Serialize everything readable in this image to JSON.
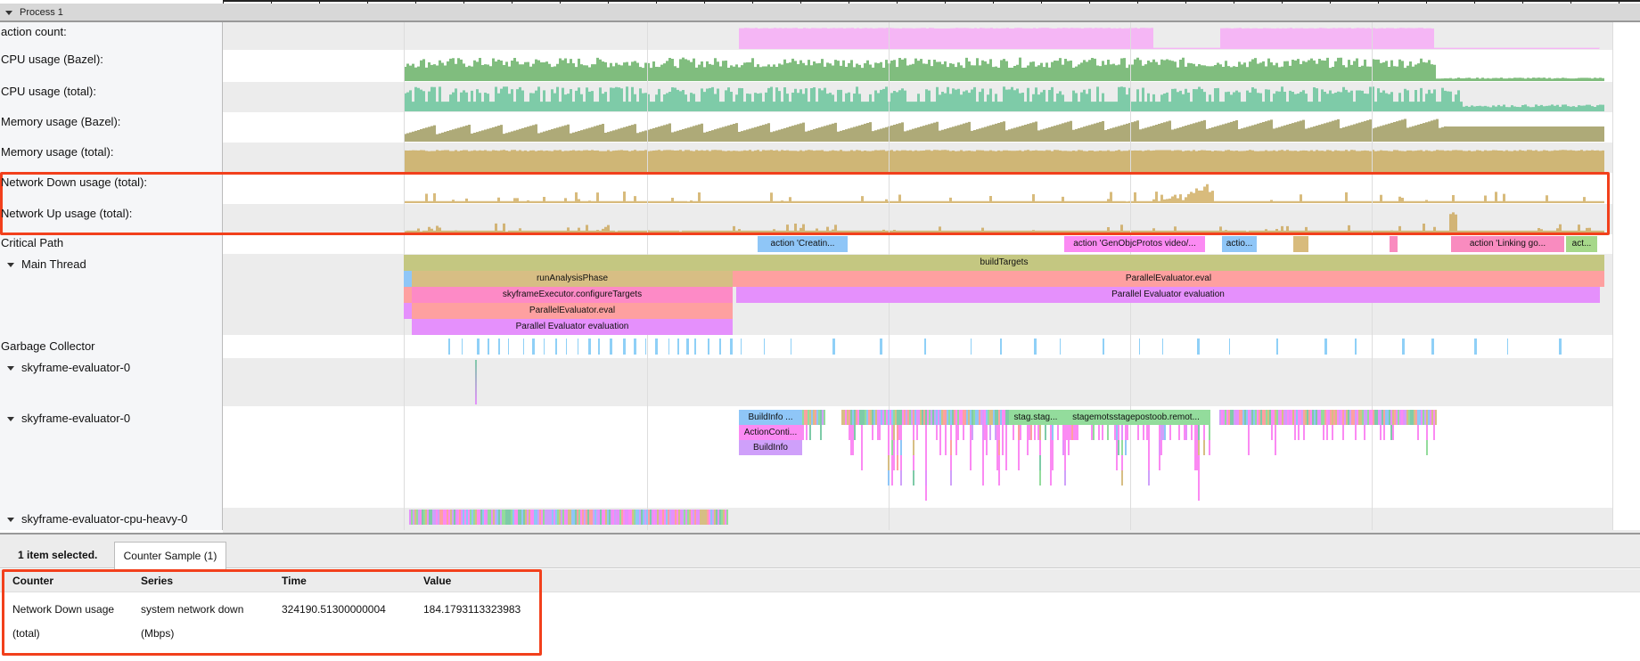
{
  "process": {
    "title": "Process 1"
  },
  "tracks": [
    {
      "label": "action count:",
      "color": "#f5b6f5"
    },
    {
      "label": "CPU usage (Bazel):",
      "color": "#80bd7e"
    },
    {
      "label": "CPU usage (total):",
      "color": "#7ecba8"
    },
    {
      "label": "Memory usage (Bazel):",
      "color": "#aeaa78"
    },
    {
      "label": "Memory usage (total):",
      "color": "#cfb676"
    },
    {
      "label": "Network Down usage (total):",
      "color": "#d8bb7c"
    },
    {
      "label": "Network Up usage (total):",
      "color": "#d2b476"
    }
  ],
  "threads": {
    "critical_path": "Critical Path",
    "main_thread": "Main Thread",
    "garbage_collector": "Garbage Collector",
    "sky0a": "skyframe-evaluator-0",
    "sky0b": "skyframe-evaluator-0",
    "cpu_heavy": "skyframe-evaluator-cpu-heavy-0"
  },
  "critical_path": [
    "action 'Creatin...",
    "action 'GenObjcProtos video/...",
    "actio...",
    "action 'Linking go...",
    "act..."
  ],
  "main_thread": {
    "build_targets": "buildTargets",
    "run_analysis": "runAnalysisPhase",
    "configure_targets": "skyframeExecutor.configureTargets",
    "pe_eval_a": "ParallelEvaluator.eval",
    "pe_evaluation_a": "Parallel Evaluator evaluation",
    "pe_eval_b": "ParallelEvaluator.eval",
    "pe_evaluation_b": "Parallel Evaluator evaluation"
  },
  "skyframe": {
    "buildinfo1": "BuildInfo ...",
    "actioncontext": "ActionConti...",
    "buildinfo2": "BuildInfo",
    "stag1": "stag.stag...",
    "stag2": "stagemotsstagepostoob.remot..."
  },
  "details": {
    "selection": "1 item selected.",
    "tab": "Counter Sample (1)",
    "columns": [
      "Counter",
      "Series",
      "Time",
      "Value"
    ],
    "row": {
      "counter_line1": "Network Down usage",
      "counter_line2": "(total)",
      "series_line1": "system network down",
      "series_line2": "(Mbps)",
      "time": "324190.51300000004",
      "value": "184.1793113323983"
    }
  },
  "highlight_color": "#f2401c"
}
